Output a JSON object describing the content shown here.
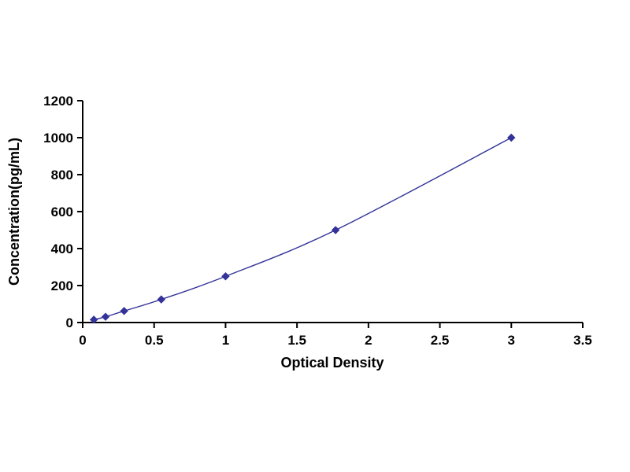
{
  "chart_data": {
    "type": "line",
    "title": "",
    "xlabel": "Optical Density",
    "ylabel": "Concentration(pg/mL)",
    "x": [
      0.078,
      0.16,
      0.29,
      0.55,
      1.0,
      1.77,
      3.0
    ],
    "y": [
      15.6,
      31.2,
      62.5,
      125,
      250,
      500,
      1000
    ],
    "xlim": [
      0,
      3.5
    ],
    "ylim": [
      0,
      1200
    ],
    "xticks": [
      0,
      0.5,
      1,
      1.5,
      2,
      2.5,
      3,
      3.5
    ],
    "yticks": [
      0,
      200,
      400,
      600,
      800,
      1000,
      1200
    ],
    "grid": false,
    "legend": "none",
    "marker": "diamond",
    "line_color": "#333399",
    "axis_color": "#000000"
  }
}
